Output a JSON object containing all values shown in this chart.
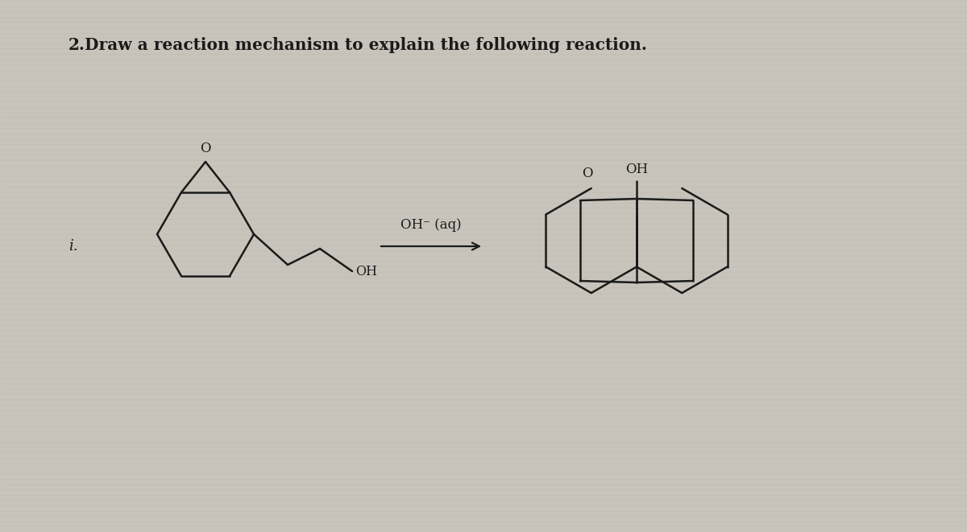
{
  "bg_color": "#c8c4bc",
  "line_color": "#1a1a1a",
  "title_num": "2.",
  "title_text": "  Draw a reaction mechanism to explain the following reaction.",
  "title_fontsize": 14.5,
  "label_i": "i.",
  "reagent_text": "OH⁻ (aq)",
  "figsize": [
    12.0,
    6.61
  ],
  "dpi": 100
}
